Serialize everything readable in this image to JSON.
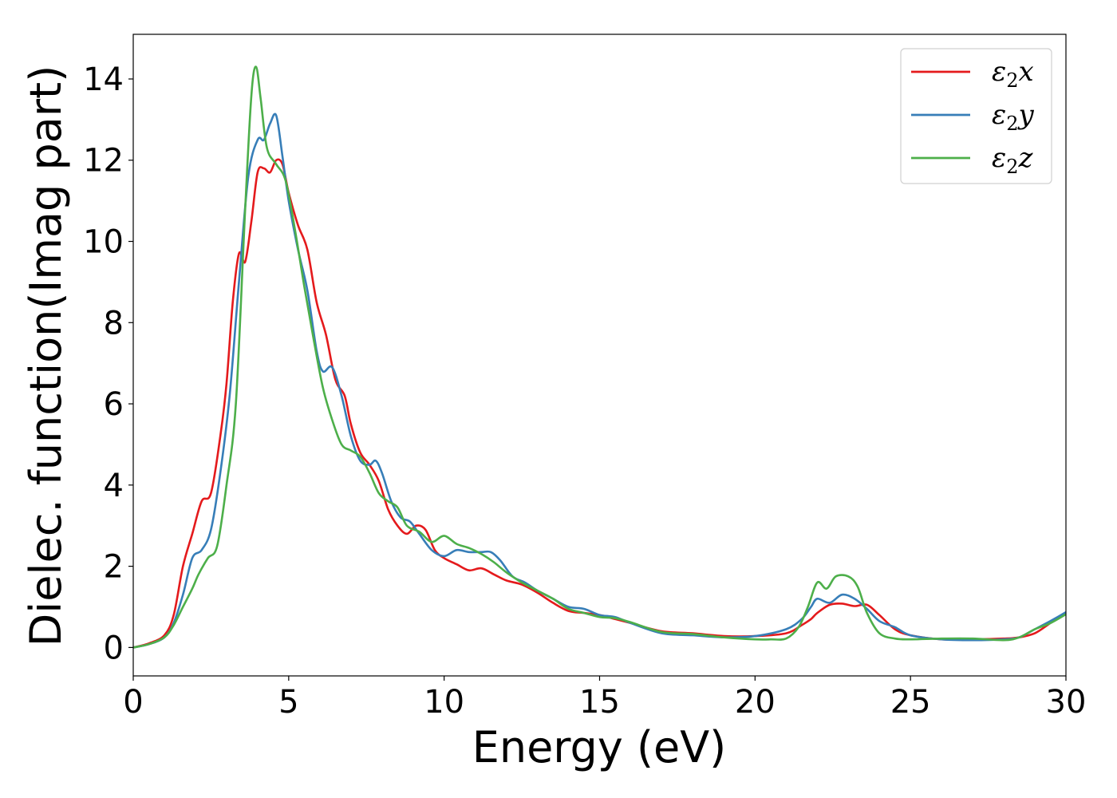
{
  "chart_data": {
    "type": "line",
    "xlabel": "Energy (eV)",
    "ylabel": "Dielec. function(Imag part)",
    "xlim": [
      0,
      30
    ],
    "ylim": [
      -0.7,
      15.1
    ],
    "xticks": [
      "0",
      "5",
      "10",
      "15",
      "20",
      "25",
      "30"
    ],
    "yticks": [
      "0",
      "2",
      "4",
      "6",
      "8",
      "10",
      "12",
      "14"
    ],
    "grid": false,
    "legend_position": "top-right",
    "series": [
      {
        "name": "ε₂x",
        "legend": {
          "base": "ε",
          "sub": "2",
          "var": "x"
        },
        "color": "#e41a1c",
        "x": [
          0,
          0.5,
          1.0,
          1.3,
          1.6,
          1.9,
          2.2,
          2.5,
          2.8,
          3.0,
          3.2,
          3.4,
          3.6,
          3.8,
          4.0,
          4.2,
          4.4,
          4.6,
          4.8,
          5.0,
          5.3,
          5.6,
          5.9,
          6.2,
          6.5,
          6.8,
          7.0,
          7.3,
          7.6,
          7.9,
          8.2,
          8.5,
          8.8,
          9.1,
          9.4,
          9.7,
          10.0,
          10.4,
          10.8,
          11.2,
          11.6,
          12.0,
          12.5,
          13.0,
          13.5,
          14.0,
          14.5,
          15.0,
          15.5,
          16.0,
          17.0,
          18.0,
          19.0,
          20.0,
          21.0,
          21.5,
          21.8,
          22.0,
          22.4,
          22.8,
          23.2,
          23.6,
          24.0,
          24.5,
          25.0,
          26.0,
          27.0,
          28.0,
          28.5,
          29.0,
          29.5,
          30.0
        ],
        "y": [
          0,
          0.1,
          0.3,
          0.8,
          2.0,
          2.8,
          3.6,
          3.8,
          5.2,
          6.5,
          8.5,
          9.7,
          9.5,
          10.5,
          11.7,
          11.8,
          11.7,
          12.0,
          11.9,
          11.2,
          10.4,
          9.8,
          8.5,
          7.7,
          6.6,
          6.2,
          5.5,
          4.8,
          4.5,
          4.1,
          3.4,
          3.0,
          2.8,
          3.0,
          2.9,
          2.4,
          2.2,
          2.05,
          1.9,
          1.95,
          1.8,
          1.65,
          1.55,
          1.35,
          1.1,
          0.9,
          0.85,
          0.8,
          0.7,
          0.6,
          0.4,
          0.35,
          0.28,
          0.28,
          0.35,
          0.55,
          0.7,
          0.85,
          1.05,
          1.08,
          1.02,
          1.05,
          0.8,
          0.45,
          0.3,
          0.2,
          0.2,
          0.22,
          0.25,
          0.35,
          0.6,
          0.85
        ]
      },
      {
        "name": "ε₂y",
        "legend": {
          "base": "ε",
          "sub": "2",
          "var": "y"
        },
        "color": "#377eb8",
        "x": [
          0,
          0.5,
          1.0,
          1.3,
          1.6,
          1.9,
          2.2,
          2.5,
          2.8,
          3.1,
          3.4,
          3.7,
          4.0,
          4.2,
          4.4,
          4.6,
          4.8,
          5.0,
          5.3,
          5.6,
          5.9,
          6.1,
          6.4,
          6.7,
          7.0,
          7.3,
          7.6,
          7.8,
          8.0,
          8.3,
          8.6,
          8.9,
          9.2,
          9.6,
          10.0,
          10.4,
          10.8,
          11.2,
          11.5,
          11.8,
          12.2,
          12.6,
          13.0,
          13.5,
          14.0,
          14.5,
          15.0,
          15.5,
          16.0,
          17.0,
          18.0,
          19.0,
          20.0,
          21.0,
          21.5,
          21.8,
          22.0,
          22.4,
          22.8,
          23.2,
          23.6,
          24.0,
          24.5,
          25.0,
          26.0,
          27.0,
          28.0,
          28.5,
          29.0,
          29.5,
          30.0
        ],
        "y": [
          0,
          0.08,
          0.25,
          0.6,
          1.3,
          2.2,
          2.4,
          2.9,
          4.3,
          6.2,
          9.0,
          11.6,
          12.5,
          12.5,
          12.9,
          13.1,
          12.1,
          11.0,
          9.8,
          8.8,
          7.3,
          6.8,
          6.9,
          6.2,
          5.2,
          4.6,
          4.5,
          4.6,
          4.3,
          3.6,
          3.2,
          3.1,
          2.8,
          2.4,
          2.25,
          2.4,
          2.35,
          2.35,
          2.35,
          2.15,
          1.75,
          1.6,
          1.4,
          1.2,
          1.0,
          0.95,
          0.8,
          0.75,
          0.6,
          0.35,
          0.3,
          0.25,
          0.28,
          0.45,
          0.7,
          1.0,
          1.2,
          1.1,
          1.3,
          1.2,
          0.95,
          0.65,
          0.5,
          0.3,
          0.2,
          0.18,
          0.2,
          0.25,
          0.45,
          0.65,
          0.87
        ]
      },
      {
        "name": "ε₂z",
        "legend": {
          "base": "ε",
          "sub": "2",
          "var": "z"
        },
        "color": "#4daf4a",
        "x": [
          0,
          0.5,
          1.0,
          1.3,
          1.6,
          1.9,
          2.1,
          2.4,
          2.7,
          3.0,
          3.3,
          3.6,
          3.8,
          3.95,
          4.1,
          4.3,
          4.6,
          4.9,
          5.2,
          5.5,
          5.8,
          6.1,
          6.4,
          6.7,
          7.0,
          7.3,
          7.6,
          7.9,
          8.2,
          8.5,
          8.8,
          9.2,
          9.6,
          10.0,
          10.4,
          10.8,
          11.2,
          11.6,
          12.0,
          12.5,
          13.0,
          13.5,
          14.0,
          14.5,
          15.0,
          15.5,
          16.0,
          17.0,
          18.0,
          19.0,
          20.0,
          20.5,
          21.0,
          21.4,
          21.7,
          22.0,
          22.3,
          22.6,
          23.0,
          23.3,
          23.6,
          24.0,
          24.5,
          25.0,
          26.0,
          27.0,
          28.0,
          28.5,
          29.0,
          29.5,
          30.0
        ],
        "y": [
          0,
          0.08,
          0.25,
          0.55,
          1.0,
          1.45,
          1.8,
          2.2,
          2.5,
          4.0,
          6.0,
          10.8,
          13.6,
          14.3,
          13.5,
          12.3,
          11.9,
          11.5,
          10.3,
          8.9,
          7.6,
          6.4,
          5.6,
          5.0,
          4.85,
          4.7,
          4.3,
          3.8,
          3.6,
          3.45,
          3.0,
          2.85,
          2.6,
          2.75,
          2.55,
          2.45,
          2.3,
          2.1,
          1.85,
          1.6,
          1.4,
          1.2,
          0.95,
          0.85,
          0.75,
          0.72,
          0.62,
          0.38,
          0.33,
          0.25,
          0.2,
          0.2,
          0.22,
          0.5,
          1.0,
          1.6,
          1.45,
          1.75,
          1.75,
          1.5,
          0.85,
          0.35,
          0.22,
          0.2,
          0.22,
          0.22,
          0.18,
          0.25,
          0.45,
          0.6,
          0.82
        ]
      }
    ]
  }
}
